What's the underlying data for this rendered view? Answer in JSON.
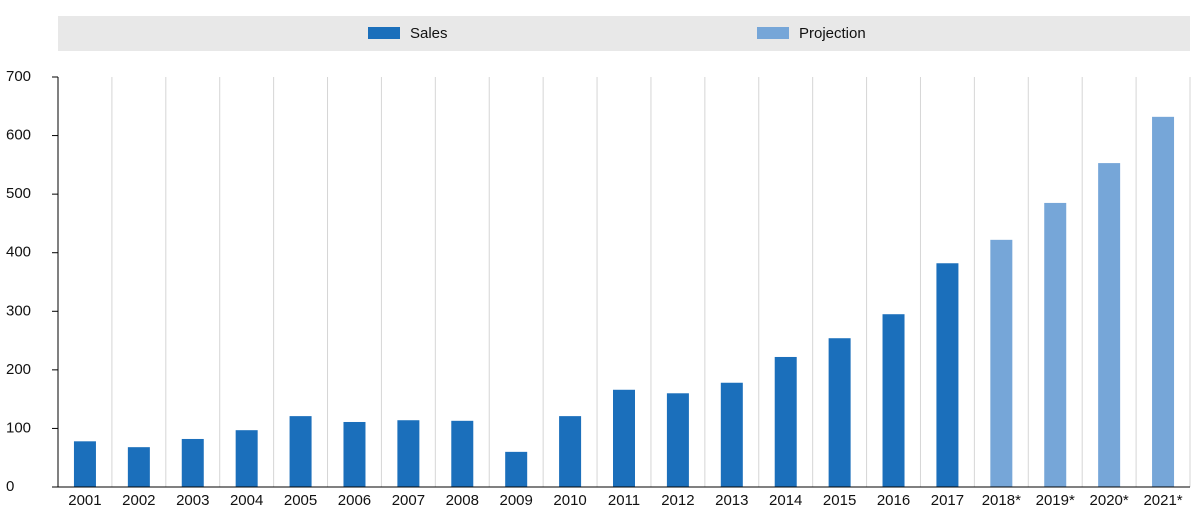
{
  "chart_data": {
    "type": "bar",
    "categories": [
      "2001",
      "2002",
      "2003",
      "2004",
      "2005",
      "2006",
      "2007",
      "2008",
      "2009",
      "2010",
      "2011",
      "2012",
      "2013",
      "2014",
      "2015",
      "2016",
      "2017",
      "2018*",
      "2019*",
      "2020*",
      "2021*"
    ],
    "series": [
      {
        "name": "Sales",
        "color": "#1b6fbb",
        "values": [
          78,
          68,
          82,
          97,
          121,
          111,
          114,
          113,
          60,
          121,
          166,
          160,
          178,
          222,
          254,
          295,
          382,
          null,
          null,
          null,
          null
        ]
      },
      {
        "name": "Projection",
        "color": "#76a6d8",
        "values": [
          null,
          null,
          null,
          null,
          null,
          null,
          null,
          null,
          null,
          null,
          null,
          null,
          null,
          null,
          null,
          null,
          null,
          422,
          485,
          553,
          632
        ]
      }
    ],
    "ylim": [
      0,
      700
    ],
    "yticks": [
      0,
      100,
      200,
      300,
      400,
      500,
      600,
      700
    ]
  }
}
